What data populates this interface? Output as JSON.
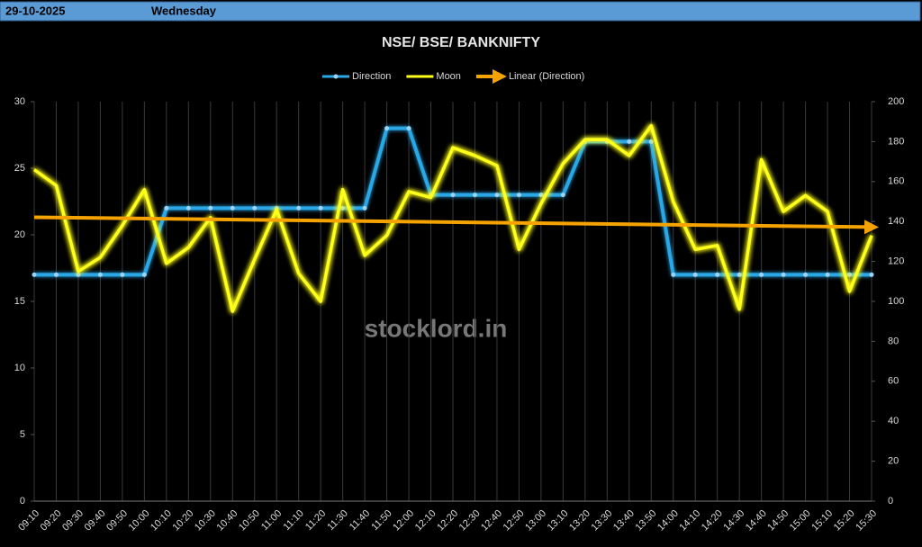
{
  "header": {
    "date": "29-10-2025",
    "day": "Wednesday"
  },
  "chart_data": {
    "type": "line",
    "title": "NSE/ BSE/ BANKNIFTY",
    "watermark": "stocklord.in",
    "categories": [
      "09:10",
      "09:20",
      "09:30",
      "09:40",
      "09:50",
      "10:00",
      "10:10",
      "10:20",
      "10:30",
      "10:40",
      "10:50",
      "11:00",
      "11:10",
      "11:20",
      "11:30",
      "11:40",
      "11:50",
      "12:00",
      "12:10",
      "12:20",
      "12:30",
      "12:40",
      "12:50",
      "13:00",
      "13:10",
      "13:20",
      "13:30",
      "13:40",
      "13:50",
      "14:00",
      "14:10",
      "14:20",
      "14:30",
      "14:40",
      "14:50",
      "15:00",
      "15:10",
      "15:20",
      "15:30"
    ],
    "series": [
      {
        "name": "Direction",
        "color": "#2aa7e6",
        "axis": "y",
        "values": [
          17,
          17,
          17,
          17,
          17,
          17,
          22,
          22,
          22,
          22,
          22,
          22,
          22,
          22,
          22,
          22,
          28,
          28,
          23,
          23,
          23,
          23,
          23,
          23,
          23,
          27,
          27,
          27,
          27,
          17,
          17,
          17,
          17,
          17,
          17,
          17,
          17,
          17,
          17
        ]
      },
      {
        "name": "Moon",
        "color": "#ffff1a",
        "axis": "y2",
        "values": [
          166,
          158,
          115,
          122,
          138,
          156,
          119,
          127,
          142,
          95,
          121,
          146,
          114,
          100,
          156,
          123,
          133,
          155,
          152,
          177,
          173,
          168,
          126,
          149,
          169,
          181,
          181,
          173,
          188,
          150,
          126,
          128,
          96,
          171,
          145,
          153,
          145,
          105,
          133
        ]
      }
    ],
    "trendline": {
      "name": "Linear (Direction)",
      "color": "#f5a300"
    },
    "ylim": [
      0,
      30
    ],
    "yticks": [
      0,
      5,
      10,
      15,
      20,
      25,
      30
    ],
    "y2lim": [
      0,
      200
    ],
    "y2ticks": [
      0,
      20,
      40,
      60,
      80,
      100,
      120,
      140,
      160,
      180,
      200
    ],
    "grid": true
  }
}
